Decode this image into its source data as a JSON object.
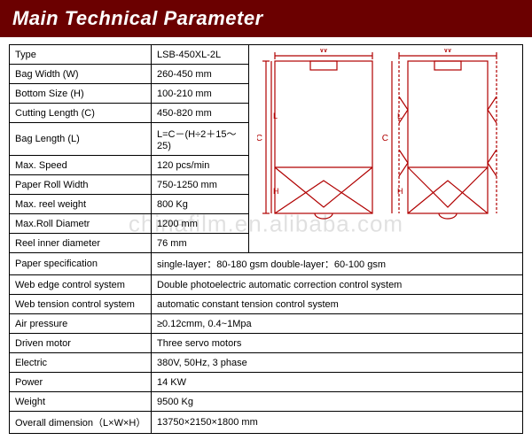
{
  "header": {
    "title": "Main Technical Parameter"
  },
  "watermark": "chinafilm.en.alibaba.com",
  "table": {
    "narrow_rows": [
      {
        "label": "Type",
        "value": "LSB-450XL-2L"
      },
      {
        "label": "Bag Width (W)",
        "value": "260-450 mm"
      },
      {
        "label": "Bottom Size (H)",
        "value": "100-210 mm"
      },
      {
        "label": "Cutting Length (C)",
        "value": "450-820 mm"
      },
      {
        "label": "Bag Length (L)",
        "value": "L=C－(H÷2＋15～25)"
      },
      {
        "label": "Max. Speed",
        "value": "120 pcs/min"
      },
      {
        "label": "Paper Roll Width",
        "value": "750-1250 mm"
      },
      {
        "label": "Max. reel weight",
        "value": "800 Kg"
      },
      {
        "label": "Max.Roll Diametr",
        "value": "1200 mm"
      },
      {
        "label": "Reel inner diameter",
        "value": "76 mm"
      }
    ],
    "wide_rows": [
      {
        "label": "Paper specification",
        "value": "single-layer：80-180 gsm    double-layer：60-100 gsm"
      },
      {
        "label": "Web edge control system",
        "value": "Double photoelectric automatic correction control system"
      },
      {
        "label": "Web tension control system",
        "value": "automatic constant tension control system"
      },
      {
        "label": "Air pressure",
        "value": "≥0.12cmm, 0.4~1Mpa"
      },
      {
        "label": "Driven motor",
        "value": "Three servo motors"
      },
      {
        "label": "Electric",
        "value": "380V, 50Hz, 3 phase"
      },
      {
        "label": "Power",
        "value": "14 KW"
      },
      {
        "label": "Weight",
        "value": "9500 Kg"
      },
      {
        "label": "Overall dimension（L×W×H）",
        "value": "13750×2150×1800 mm"
      }
    ]
  },
  "diagram": {
    "labels": {
      "w": "W",
      "l": "L",
      "c": "C",
      "h": "H"
    },
    "colors": {
      "stroke": "#b00000",
      "light": "#ffffff"
    }
  }
}
